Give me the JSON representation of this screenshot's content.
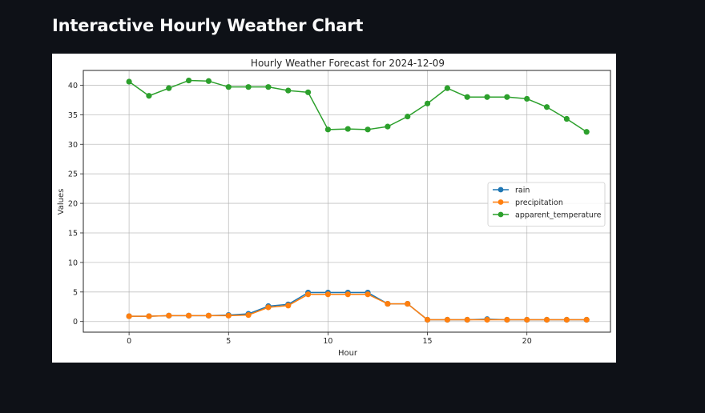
{
  "page": {
    "title": "Interactive Hourly Weather Chart"
  },
  "chart_data": {
    "type": "line",
    "title": "Hourly Weather Forecast for 2024-12-09",
    "xlabel": "Hour",
    "ylabel": "Values",
    "x": [
      0,
      1,
      2,
      3,
      4,
      5,
      6,
      7,
      8,
      9,
      10,
      11,
      12,
      13,
      14,
      15,
      16,
      17,
      18,
      19,
      20,
      21,
      22,
      23
    ],
    "xlim": [
      -2.3,
      24.2
    ],
    "ylim": [
      -1.8,
      42.5
    ],
    "xticks": [
      0,
      5,
      10,
      15,
      20
    ],
    "yticks": [
      0,
      5,
      10,
      15,
      20,
      25,
      30,
      35,
      40
    ],
    "grid": true,
    "legend_position": "center-right",
    "series": [
      {
        "name": "rain",
        "color": "#1f77b4",
        "marker": "circle",
        "values": [
          0.9,
          0.9,
          1.0,
          1.0,
          1.0,
          1.1,
          1.3,
          2.6,
          2.9,
          4.9,
          4.9,
          4.9,
          4.9,
          3.0,
          3.0,
          0.3,
          0.3,
          0.3,
          0.4,
          0.3,
          0.3,
          0.3,
          0.3,
          0.3
        ]
      },
      {
        "name": "precipitation",
        "color": "#ff7f0e",
        "marker": "circle",
        "values": [
          0.9,
          0.9,
          1.0,
          1.0,
          1.0,
          1.0,
          1.1,
          2.4,
          2.7,
          4.6,
          4.6,
          4.6,
          4.6,
          3.0,
          3.0,
          0.3,
          0.3,
          0.3,
          0.3,
          0.3,
          0.3,
          0.3,
          0.3,
          0.3
        ]
      },
      {
        "name": "apparent_temperature",
        "color": "#2ca02c",
        "marker": "circle",
        "values": [
          40.6,
          38.2,
          39.5,
          40.8,
          40.7,
          39.7,
          39.7,
          39.7,
          39.1,
          38.8,
          32.5,
          32.6,
          32.5,
          33.0,
          34.7,
          36.9,
          39.5,
          38.0,
          38.0,
          38.0,
          37.7,
          36.3,
          34.3,
          32.1
        ]
      }
    ]
  }
}
